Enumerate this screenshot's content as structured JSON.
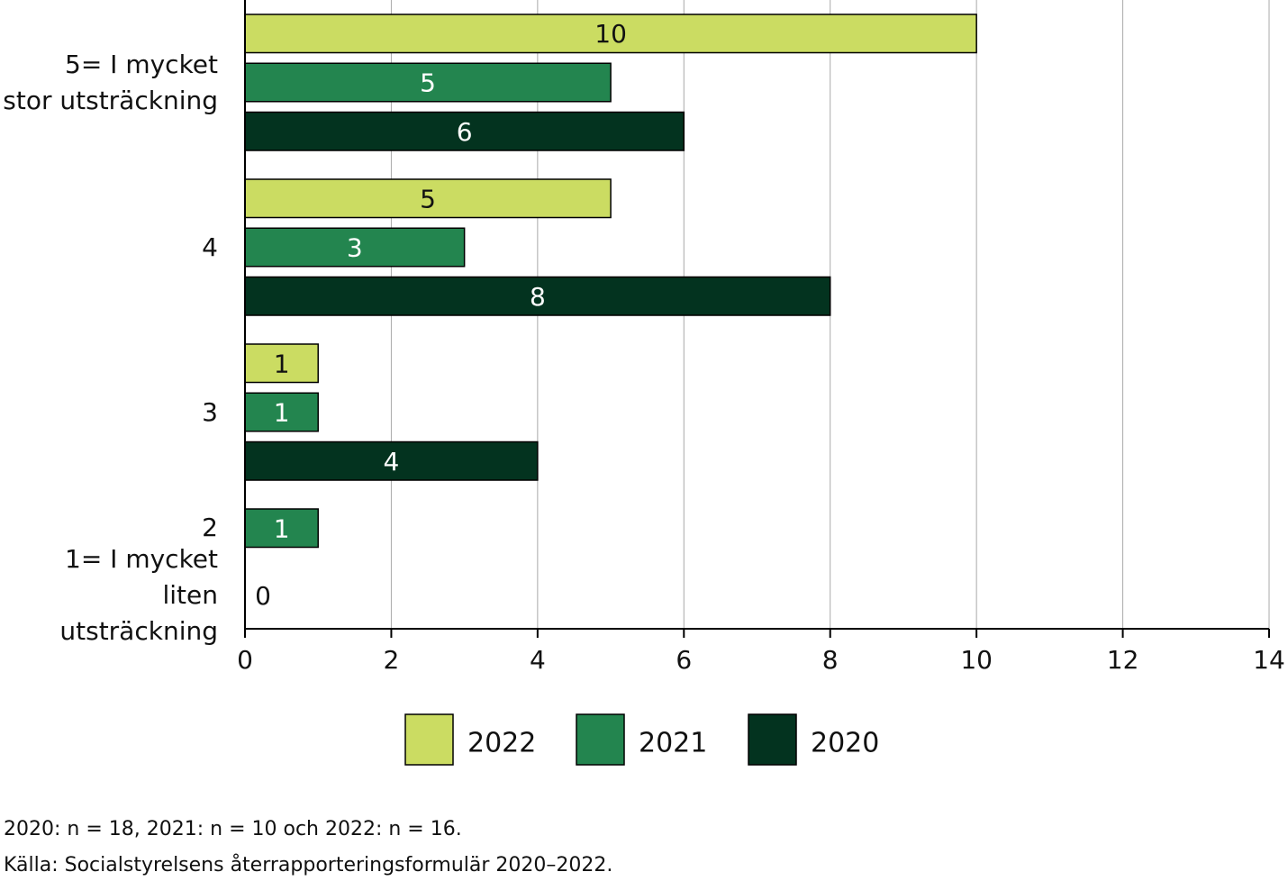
{
  "chart_data": {
    "type": "bar",
    "orientation": "horizontal",
    "categories": [
      "5= I mycket\nstor utsträckning",
      "4",
      "3",
      "2",
      "1= I mycket\nliten utsträckning"
    ],
    "series": [
      {
        "name": "2022",
        "color": "#cbdc62",
        "values": [
          10,
          5,
          1,
          null,
          null
        ]
      },
      {
        "name": "2021",
        "color": "#23854f",
        "values": [
          5,
          3,
          1,
          1,
          0
        ]
      },
      {
        "name": "2020",
        "color": "#03331f",
        "values": [
          6,
          8,
          4,
          null,
          null
        ]
      }
    ],
    "xlim": [
      0,
      14
    ],
    "xticks": [
      0,
      2,
      4,
      6,
      8,
      10,
      12,
      14
    ],
    "grid": true,
    "notes": [
      "2020: n = 18, 2021: n = 10 och 2022: n = 16.",
      "Källa: Socialstyrelsens återrapporteringsformulär 2020–2022."
    ]
  }
}
